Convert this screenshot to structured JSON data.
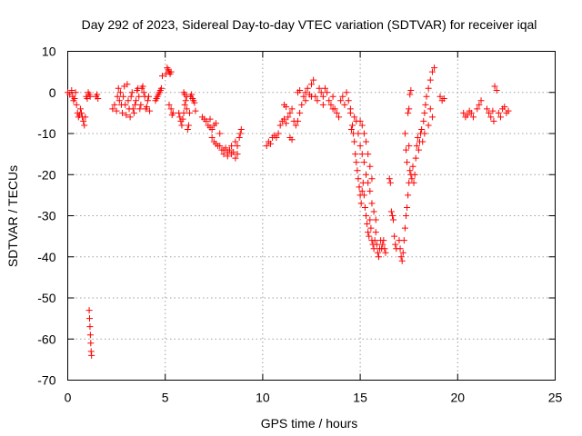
{
  "chart_data": {
    "type": "scatter",
    "title": "Day 292 of 2023, Sidereal Day-to-day VTEC variation (SDTVAR) for receiver iqal",
    "xlabel": "GPS time / hours",
    "ylabel": "SDTVAR / TECUs",
    "xlim": [
      0,
      25
    ],
    "ylim": [
      -70,
      10
    ],
    "xticks": [
      "0",
      "5",
      "10",
      "15",
      "20",
      "25"
    ],
    "yticks": [
      "10",
      "0",
      "-10",
      "-20",
      "-30",
      "-40",
      "-50",
      "-60",
      "-70"
    ],
    "grid": true,
    "marker": "+",
    "marker_color": "#ff0000",
    "series": [
      {
        "name": "SDTVAR",
        "points": [
          [
            0.0,
            0
          ],
          [
            0.1,
            -0.5
          ],
          [
            0.2,
            0.5
          ],
          [
            0.25,
            -1
          ],
          [
            0.3,
            -2
          ],
          [
            0.35,
            -1.5
          ],
          [
            0.4,
            0
          ],
          [
            0.45,
            -3
          ],
          [
            0.5,
            -5
          ],
          [
            0.55,
            -6
          ],
          [
            0.6,
            -5.5
          ],
          [
            0.65,
            -4
          ],
          [
            0.7,
            -5
          ],
          [
            0.75,
            -6
          ],
          [
            0.8,
            -7
          ],
          [
            0.85,
            -8
          ],
          [
            0.9,
            -6
          ],
          [
            0.95,
            -1
          ],
          [
            1.0,
            -1.5
          ],
          [
            1.05,
            0
          ],
          [
            1.1,
            -0.5
          ],
          [
            1.15,
            -1
          ],
          [
            1.1,
            -53
          ],
          [
            1.12,
            -55
          ],
          [
            1.14,
            -57
          ],
          [
            1.16,
            -59
          ],
          [
            1.18,
            -61
          ],
          [
            1.2,
            -63
          ],
          [
            1.22,
            -64
          ],
          [
            1.45,
            -1
          ],
          [
            1.5,
            -0.5
          ],
          [
            1.55,
            -1.5
          ],
          [
            2.3,
            -4
          ],
          [
            2.4,
            -3
          ],
          [
            2.5,
            -4.5
          ],
          [
            2.55,
            -1
          ],
          [
            2.6,
            1
          ],
          [
            2.65,
            -2
          ],
          [
            2.7,
            0
          ],
          [
            2.75,
            -3
          ],
          [
            2.8,
            -5
          ],
          [
            2.85,
            -1
          ],
          [
            2.9,
            1.5
          ],
          [
            2.95,
            -3
          ],
          [
            3.0,
            -5.5
          ],
          [
            3.05,
            2
          ],
          [
            3.1,
            -2
          ],
          [
            3.15,
            -4
          ],
          [
            3.2,
            -6
          ],
          [
            3.25,
            -1
          ],
          [
            3.3,
            0
          ],
          [
            3.35,
            -4
          ],
          [
            3.4,
            -5
          ],
          [
            3.45,
            -3
          ],
          [
            3.5,
            -2
          ],
          [
            3.55,
            0.5
          ],
          [
            3.6,
            1
          ],
          [
            3.65,
            -1
          ],
          [
            3.7,
            -4
          ],
          [
            3.75,
            -3
          ],
          [
            3.8,
            1
          ],
          [
            3.85,
            1.5
          ],
          [
            3.9,
            0
          ],
          [
            3.95,
            -1
          ],
          [
            4.0,
            -4
          ],
          [
            4.05,
            -3.5
          ],
          [
            4.1,
            -2
          ],
          [
            4.15,
            -1
          ],
          [
            4.2,
            -4.5
          ],
          [
            4.5,
            -2
          ],
          [
            4.55,
            -1.5
          ],
          [
            4.6,
            -1
          ],
          [
            4.65,
            -0.5
          ],
          [
            4.7,
            0
          ],
          [
            4.75,
            0.5
          ],
          [
            4.8,
            1
          ],
          [
            4.85,
            4
          ],
          [
            5.05,
            4.5
          ],
          [
            5.1,
            6
          ],
          [
            5.15,
            5.5
          ],
          [
            5.2,
            5
          ],
          [
            5.25,
            4.5
          ],
          [
            5.3,
            5
          ],
          [
            5.2,
            -3
          ],
          [
            5.3,
            -4
          ],
          [
            5.4,
            -5
          ],
          [
            5.35,
            -5.5
          ],
          [
            5.7,
            -5
          ],
          [
            5.75,
            -6
          ],
          [
            5.8,
            -7
          ],
          [
            5.85,
            -8
          ],
          [
            5.9,
            -6.5
          ],
          [
            5.95,
            -5
          ],
          [
            6.0,
            -3
          ],
          [
            6.05,
            -2
          ],
          [
            6.1,
            -4
          ],
          [
            6.15,
            -9
          ],
          [
            6.2,
            -8
          ],
          [
            6.25,
            -5
          ],
          [
            6.3,
            -1
          ],
          [
            6.35,
            -0.5
          ],
          [
            6.4,
            -1.5
          ],
          [
            6.45,
            -2
          ],
          [
            6.5,
            -2.5
          ],
          [
            6.55,
            -4.5
          ],
          [
            5.95,
            0
          ],
          [
            6.0,
            -0.5
          ],
          [
            6.1,
            -1
          ],
          [
            6.9,
            -6
          ],
          [
            7.0,
            -6.5
          ],
          [
            7.1,
            -7
          ],
          [
            7.2,
            -8
          ],
          [
            7.3,
            -8.5
          ],
          [
            7.4,
            -9
          ],
          [
            7.5,
            -8
          ],
          [
            7.4,
            -11
          ],
          [
            7.5,
            -12
          ],
          [
            7.6,
            -12.5
          ],
          [
            7.7,
            -13
          ],
          [
            7.8,
            -13
          ],
          [
            7.9,
            -14
          ],
          [
            8.0,
            -14
          ],
          [
            8.1,
            -13.5
          ],
          [
            8.2,
            -14.5
          ],
          [
            8.3,
            -14
          ],
          [
            8.4,
            -15
          ],
          [
            8.5,
            -14.5
          ],
          [
            8.6,
            -16
          ],
          [
            8.7,
            -13
          ],
          [
            8.8,
            -11
          ],
          [
            8.85,
            -10
          ],
          [
            8.9,
            -9
          ],
          [
            7.6,
            -7.5
          ],
          [
            7.8,
            -10
          ],
          [
            8.0,
            -15
          ],
          [
            8.2,
            -15.5
          ],
          [
            8.4,
            -13
          ],
          [
            8.6,
            -12
          ],
          [
            8.7,
            -15
          ],
          [
            7.3,
            -6.5
          ],
          [
            10.2,
            -13
          ],
          [
            10.3,
            -12
          ],
          [
            10.4,
            -12.5
          ],
          [
            10.5,
            -11
          ],
          [
            10.6,
            -10.5
          ],
          [
            10.7,
            -11
          ],
          [
            10.8,
            -10
          ],
          [
            10.9,
            -8
          ],
          [
            11.0,
            -7
          ],
          [
            11.1,
            -6.5
          ],
          [
            11.2,
            -7.5
          ],
          [
            11.3,
            -6
          ],
          [
            11.4,
            -5
          ],
          [
            11.5,
            -4
          ],
          [
            11.4,
            -11
          ],
          [
            11.5,
            -11.5
          ],
          [
            11.6,
            -7
          ],
          [
            11.7,
            -8
          ],
          [
            11.8,
            -7
          ],
          [
            11.9,
            -5
          ],
          [
            12.0,
            -3
          ],
          [
            12.1,
            -1
          ],
          [
            12.2,
            0
          ],
          [
            12.3,
            1
          ],
          [
            12.4,
            -0.5
          ],
          [
            12.5,
            2
          ],
          [
            12.6,
            3
          ],
          [
            12.7,
            -1
          ],
          [
            12.8,
            -2
          ],
          [
            12.9,
            1
          ],
          [
            13.0,
            0
          ],
          [
            13.1,
            -1
          ],
          [
            13.2,
            1
          ],
          [
            13.3,
            0
          ],
          [
            13.4,
            -2
          ],
          [
            13.5,
            -3
          ],
          [
            13.6,
            -1
          ],
          [
            13.7,
            -4
          ],
          [
            13.8,
            -5
          ],
          [
            13.9,
            -6
          ],
          [
            14.0,
            -2
          ],
          [
            14.1,
            -1
          ],
          [
            14.2,
            -3
          ],
          [
            14.3,
            0
          ],
          [
            14.4,
            -2
          ],
          [
            14.5,
            -4
          ],
          [
            11.1,
            -3
          ],
          [
            11.2,
            -3.5
          ],
          [
            11.8,
            0
          ],
          [
            11.9,
            0.5
          ],
          [
            12.2,
            -2
          ],
          [
            12.5,
            -1
          ],
          [
            13.1,
            -3
          ],
          [
            13.6,
            -4
          ],
          [
            14.5,
            -5
          ],
          [
            14.55,
            -9
          ],
          [
            14.6,
            -8
          ],
          [
            14.65,
            -10
          ],
          [
            14.7,
            -12
          ],
          [
            14.75,
            -15
          ],
          [
            14.8,
            -17
          ],
          [
            14.85,
            -19
          ],
          [
            14.9,
            -21
          ],
          [
            14.95,
            -23
          ],
          [
            15.0,
            -25
          ],
          [
            15.05,
            -27
          ],
          [
            15.1,
            -24
          ],
          [
            15.15,
            -22
          ],
          [
            15.2,
            -25
          ],
          [
            15.25,
            -28
          ],
          [
            15.3,
            -30
          ],
          [
            15.35,
            -32
          ],
          [
            15.4,
            -34
          ],
          [
            15.45,
            -35
          ],
          [
            15.5,
            -31
          ],
          [
            15.55,
            -33
          ],
          [
            15.6,
            -36
          ],
          [
            15.65,
            -37
          ],
          [
            15.7,
            -38
          ],
          [
            15.75,
            -36
          ],
          [
            15.8,
            -34
          ],
          [
            15.85,
            -37
          ],
          [
            15.9,
            -39
          ],
          [
            15.95,
            -40
          ],
          [
            16.0,
            -38
          ],
          [
            16.05,
            -36
          ],
          [
            16.1,
            -38
          ],
          [
            16.15,
            -37
          ],
          [
            16.2,
            -36
          ],
          [
            16.25,
            -38
          ],
          [
            16.3,
            -39
          ],
          [
            14.7,
            -6
          ],
          [
            14.8,
            -7
          ],
          [
            14.9,
            -10
          ],
          [
            15.0,
            -13
          ],
          [
            15.1,
            -15
          ],
          [
            15.2,
            -17
          ],
          [
            15.3,
            -20
          ],
          [
            15.4,
            -22
          ],
          [
            15.5,
            -24
          ],
          [
            15.6,
            -27
          ],
          [
            15.7,
            -29
          ],
          [
            15.8,
            -31
          ],
          [
            15.0,
            -7
          ],
          [
            15.1,
            -8
          ],
          [
            15.2,
            -10
          ],
          [
            15.3,
            -12
          ],
          [
            15.4,
            -15
          ],
          [
            15.5,
            -18
          ],
          [
            15.6,
            -21
          ],
          [
            16.5,
            -21
          ],
          [
            16.55,
            -22
          ],
          [
            16.6,
            -29
          ],
          [
            16.65,
            -30
          ],
          [
            16.7,
            -31
          ],
          [
            16.75,
            -35
          ],
          [
            16.8,
            -37
          ],
          [
            16.85,
            -38
          ],
          [
            17.0,
            -36
          ],
          [
            17.05,
            -38
          ],
          [
            17.1,
            -40
          ],
          [
            17.15,
            -41
          ],
          [
            17.2,
            -39
          ],
          [
            17.25,
            -36
          ],
          [
            17.3,
            -33
          ],
          [
            17.35,
            -30
          ],
          [
            17.4,
            -28
          ],
          [
            17.45,
            -25
          ],
          [
            17.5,
            -22
          ],
          [
            17.55,
            -19
          ],
          [
            17.3,
            -10
          ],
          [
            17.35,
            -14
          ],
          [
            17.4,
            -17
          ],
          [
            17.5,
            -13
          ],
          [
            17.45,
            -5
          ],
          [
            17.5,
            -4
          ],
          [
            17.55,
            -0.5
          ],
          [
            17.6,
            0.5
          ],
          [
            17.6,
            -20
          ],
          [
            17.65,
            -21
          ],
          [
            17.7,
            -18
          ],
          [
            17.75,
            -22
          ],
          [
            17.8,
            -20
          ],
          [
            17.85,
            -16
          ],
          [
            17.9,
            -13
          ],
          [
            17.95,
            -11
          ],
          [
            18.0,
            -14
          ],
          [
            18.05,
            -12
          ],
          [
            18.1,
            -10
          ],
          [
            18.15,
            -9
          ],
          [
            18.2,
            -12
          ],
          [
            18.25,
            -7
          ],
          [
            18.3,
            -5
          ],
          [
            18.35,
            -3
          ],
          [
            18.4,
            -1
          ],
          [
            18.5,
            1
          ],
          [
            18.6,
            3
          ],
          [
            18.7,
            5
          ],
          [
            18.8,
            6
          ],
          [
            18.6,
            -4
          ],
          [
            18.7,
            -6
          ],
          [
            18.5,
            -8
          ],
          [
            18.3,
            -10
          ],
          [
            19.1,
            -1
          ],
          [
            19.2,
            -2
          ],
          [
            19.3,
            -1.5
          ],
          [
            20.3,
            -5
          ],
          [
            20.4,
            -6
          ],
          [
            20.5,
            -5.5
          ],
          [
            20.6,
            -4.5
          ],
          [
            20.7,
            -5
          ],
          [
            20.8,
            -6
          ],
          [
            21.0,
            -4
          ],
          [
            21.1,
            -3
          ],
          [
            21.2,
            -2
          ],
          [
            21.5,
            -4
          ],
          [
            21.6,
            -5
          ],
          [
            21.7,
            -6
          ],
          [
            21.8,
            -4.5
          ],
          [
            21.85,
            -7
          ],
          [
            21.9,
            1.5
          ],
          [
            22.0,
            0.5
          ],
          [
            22.1,
            -5
          ],
          [
            22.2,
            -6
          ],
          [
            22.3,
            -4
          ],
          [
            22.4,
            -3.5
          ],
          [
            22.5,
            -5
          ],
          [
            22.6,
            -4.5
          ]
        ]
      }
    ]
  }
}
